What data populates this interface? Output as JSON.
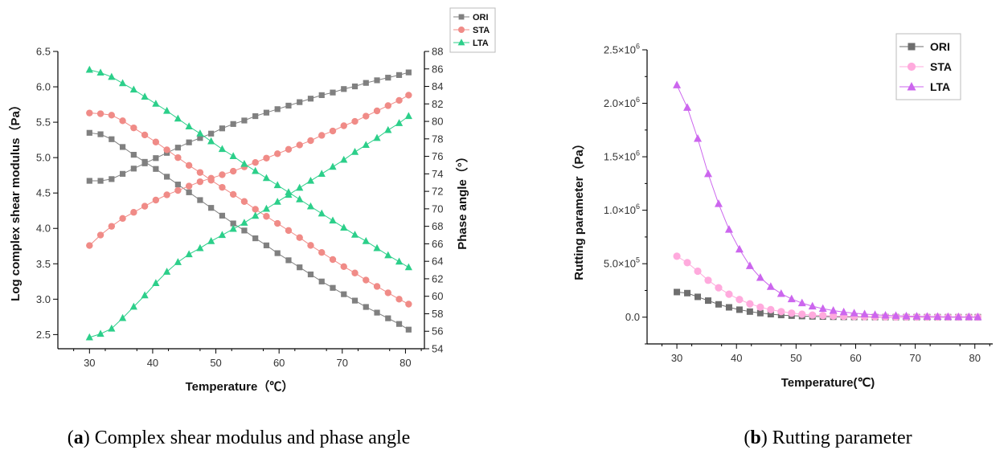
{
  "chart_data": [
    {
      "id": "a",
      "type": "scatter",
      "caption_letter": "a",
      "caption_text": "Complex shear modulus and phase angle",
      "xlabel": "Temperature（℃）",
      "ylabel_left": "Log complex shear modulus（Pa）",
      "ylabel_right": "Phase angle（°）",
      "xlim": [
        25,
        83
      ],
      "ylim_left": [
        2.3,
        6.5
      ],
      "ylim_right": [
        54,
        88
      ],
      "xticks": [
        "30",
        "40",
        "50",
        "60",
        "70",
        "80"
      ],
      "yticks_left": [
        "2.5",
        "3.0",
        "3.5",
        "4.0",
        "4.5",
        "5.0",
        "5.5",
        "6.0",
        "6.5"
      ],
      "yticks_right": [
        "54",
        "56",
        "58",
        "60",
        "62",
        "64",
        "66",
        "68",
        "70",
        "72",
        "74",
        "76",
        "78",
        "80",
        "82",
        "84",
        "86",
        "88"
      ],
      "legend_position": "top-right",
      "x": [
        30,
        31.75,
        33.5,
        35.25,
        37,
        38.75,
        40.5,
        42.25,
        44,
        45.75,
        47.5,
        49.25,
        51,
        52.75,
        54.5,
        56.25,
        58,
        59.75,
        61.5,
        63.25,
        65,
        66.75,
        68.5,
        70.25,
        72,
        73.75,
        75.5,
        77.25,
        79,
        80.5
      ],
      "series": [
        {
          "name": "ORI",
          "color": "#808080",
          "marker": "square",
          "modulus": [
            5.35,
            5.33,
            5.26,
            5.15,
            5.04,
            4.94,
            4.84,
            4.73,
            4.62,
            4.51,
            4.4,
            4.29,
            4.18,
            4.07,
            3.97,
            3.86,
            3.76,
            3.65,
            3.55,
            3.45,
            3.35,
            3.25,
            3.16,
            3.07,
            2.98,
            2.89,
            2.81,
            2.73,
            2.65,
            2.57
          ],
          "phase": [
            73.2,
            73.2,
            73.4,
            74.0,
            74.6,
            75.2,
            75.8,
            76.4,
            77.0,
            77.6,
            78.1,
            78.6,
            79.2,
            79.7,
            80.1,
            80.6,
            81.0,
            81.4,
            81.8,
            82.2,
            82.6,
            83.0,
            83.3,
            83.7,
            84.0,
            84.4,
            84.7,
            85.0,
            85.3,
            85.6
          ]
        },
        {
          "name": "STA",
          "color": "#f08b87",
          "marker": "circle",
          "modulus": [
            5.63,
            5.62,
            5.6,
            5.52,
            5.42,
            5.32,
            5.22,
            5.11,
            5.0,
            4.89,
            4.79,
            4.68,
            4.58,
            4.48,
            4.38,
            4.27,
            4.17,
            4.07,
            3.97,
            3.87,
            3.76,
            3.66,
            3.56,
            3.46,
            3.37,
            3.27,
            3.18,
            3.09,
            3.0,
            2.93
          ],
          "phase": [
            65.8,
            67.0,
            68.0,
            68.9,
            69.6,
            70.3,
            71.0,
            71.6,
            72.1,
            72.6,
            73.1,
            73.5,
            73.9,
            74.3,
            74.8,
            75.3,
            75.8,
            76.3,
            76.8,
            77.3,
            77.8,
            78.4,
            78.9,
            79.5,
            80.0,
            80.6,
            81.2,
            81.8,
            82.4,
            83.0
          ]
        },
        {
          "name": "LTA",
          "color": "#2ccf8a",
          "marker": "triangle",
          "modulus": [
            6.24,
            6.2,
            6.14,
            6.05,
            5.96,
            5.86,
            5.76,
            5.66,
            5.55,
            5.44,
            5.34,
            5.23,
            5.12,
            5.02,
            4.91,
            4.81,
            4.71,
            4.61,
            4.51,
            4.41,
            4.31,
            4.21,
            4.11,
            4.01,
            3.91,
            3.82,
            3.72,
            3.62,
            3.53,
            3.45
          ],
          "phase": [
            55.3,
            55.7,
            56.3,
            57.5,
            58.8,
            60.1,
            61.5,
            62.8,
            63.9,
            64.8,
            65.5,
            66.3,
            67.0,
            67.7,
            68.4,
            69.2,
            70.0,
            70.8,
            71.6,
            72.4,
            73.2,
            74.0,
            74.8,
            75.6,
            76.5,
            77.3,
            78.1,
            79.0,
            79.8,
            80.6
          ]
        }
      ]
    },
    {
      "id": "b",
      "type": "line",
      "caption_letter": "b",
      "caption_text": "Rutting parameter",
      "xlabel": "Temperature(℃)",
      "ylabel": "Rutting parameter（Pa）",
      "xlim": [
        25,
        83
      ],
      "ylim": [
        -250000,
        2500000
      ],
      "xticks": [
        "30",
        "40",
        "50",
        "60",
        "70",
        "80"
      ],
      "yticks": [
        {
          "value": 0,
          "mant": "0.0",
          "exp": ""
        },
        {
          "value": 500000,
          "mant": "5.0×10",
          "exp": "5"
        },
        {
          "value": 1000000,
          "mant": "1.0×10",
          "exp": "6"
        },
        {
          "value": 1500000,
          "mant": "1.5×10",
          "exp": "6"
        },
        {
          "value": 2000000,
          "mant": "2.0×10",
          "exp": "6"
        },
        {
          "value": 2500000,
          "mant": "2.5×10",
          "exp": "6"
        }
      ],
      "legend_position": "top-right",
      "x": [
        30,
        31.75,
        33.5,
        35.25,
        37,
        38.75,
        40.5,
        42.25,
        44,
        45.75,
        47.5,
        49.25,
        51,
        52.75,
        54.5,
        56.25,
        58,
        59.75,
        61.5,
        63.25,
        65,
        66.75,
        68.5,
        70.25,
        72,
        73.75,
        75.5,
        77.25,
        79,
        80.5
      ],
      "series": [
        {
          "name": "ORI",
          "color": "#6e6e6e",
          "marker": "square",
          "values": [
            235000,
            225000,
            190000,
            155000,
            120000,
            92000,
            70000,
            52000,
            38000,
            28000,
            20000,
            14000,
            10000,
            7000,
            5000,
            3500,
            2500,
            1800,
            1300,
            900,
            700,
            500,
            400,
            300,
            200,
            150,
            100,
            80,
            60,
            50
          ]
        },
        {
          "name": "STA",
          "color": "#ffaadd",
          "marker": "circle",
          "values": [
            570000,
            510000,
            430000,
            345000,
            275000,
            215000,
            165000,
            125000,
            94000,
            70000,
            52000,
            38000,
            28000,
            20000,
            15000,
            11000,
            8000,
            6000,
            4400,
            3200,
            2400,
            1800,
            1300,
            1000,
            750,
            550,
            420,
            320,
            240,
            180
          ]
        },
        {
          "name": "LTA",
          "color": "#cc66ee",
          "marker": "triangle",
          "values": [
            2170000,
            1960000,
            1670000,
            1340000,
            1060000,
            820000,
            635000,
            480000,
            370000,
            285000,
            220000,
            170000,
            132000,
            102000,
            80000,
            62000,
            48000,
            37000,
            29000,
            22000,
            17000,
            13500,
            10500,
            8200,
            6400,
            5000,
            3900,
            3000,
            2400,
            1900
          ]
        }
      ]
    }
  ]
}
